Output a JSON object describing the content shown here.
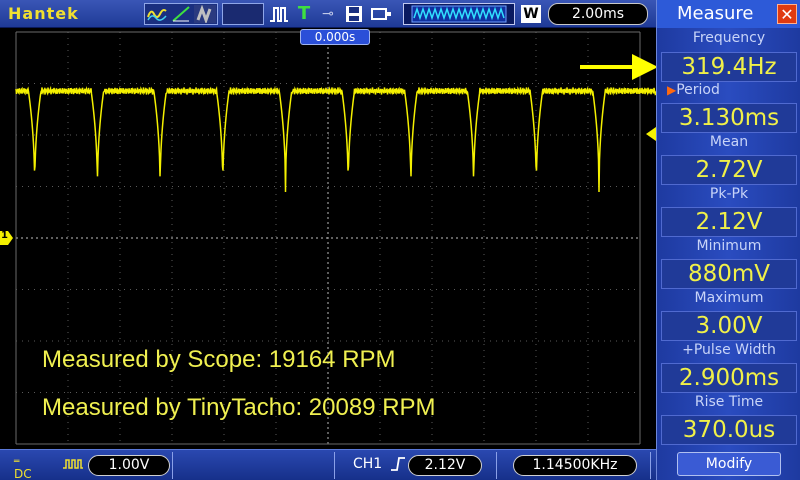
{
  "topbar": {
    "brand": "Hantek",
    "timebase": "2.00ms",
    "acq_mode_letter": "W"
  },
  "screen": {
    "trigger_position": "0.000s",
    "channel_marker": "1",
    "notes": [
      "Measured by Scope: 19164 RPM",
      "Measured by TinyTacho: 20089 RPM"
    ],
    "trace_color": "#f4f000"
  },
  "bottombar": {
    "coupling": "DC",
    "ch_scale": "1.00V",
    "trigger_source": "CH1",
    "trigger_level": "2.12V",
    "trigger_freq": "1.14500KHz"
  },
  "measure": {
    "title": "Measure",
    "items": [
      {
        "label": "Frequency",
        "value": "319.4Hz"
      },
      {
        "label": "Period",
        "value": "3.130ms"
      },
      {
        "label": "Mean",
        "value": "2.72V"
      },
      {
        "label": "Pk-Pk",
        "value": "2.12V"
      },
      {
        "label": "Minimum",
        "value": "880mV"
      },
      {
        "label": "Maximum",
        "value": "3.00V"
      },
      {
        "label": "+Pulse Width",
        "value": "2.900ms"
      },
      {
        "label": "Rise Time",
        "value": "370.0us"
      }
    ],
    "modify_label": "Modify"
  }
}
